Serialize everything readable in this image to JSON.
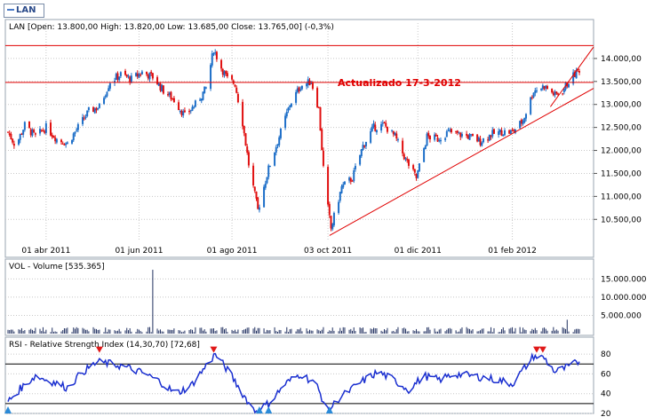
{
  "legend": {
    "symbol": "LAN",
    "color": "#4a7ac8"
  },
  "price_panel": {
    "header": "LAN [Open: 13.800,00  High: 13.820,00  Low: 13.685,00  Close: 13.765,00] (-0,3%)",
    "annotation": "Actualizado 17-3-2012",
    "y_ticks": [
      "14.000,00",
      "13.500,00",
      "13.000,00",
      "12.500,00",
      "12.000,00",
      "11.500,00",
      "11.000,00",
      "10.500,00"
    ],
    "x_ticks": [
      "01 abr 2011",
      "01 jun 2011",
      "01 ago 2011",
      "03 oct 2011",
      "01 dic 2011",
      "01 feb 2012"
    ],
    "support_line_1": 14280,
    "support_line_2": 13480
  },
  "volume_panel": {
    "header": "VOL - Volume [535.365]",
    "y_ticks": [
      "15.000.000",
      "10.000.000",
      "5.000.000"
    ]
  },
  "rsi_panel": {
    "header": "RSI - Relative Strength Index (14,30,70) [72,68]",
    "y_ticks": [
      "80",
      "60",
      "40",
      "20"
    ],
    "upper_level": 70,
    "lower_level": 30
  },
  "colors": {
    "up": "#1e6fc8",
    "down": "#e01010",
    "rsi": "#1a2fd0",
    "trend": "#e00000",
    "grid": "#c8c8c8"
  },
  "chart_data": [
    {
      "type": "candlestick",
      "title": "LAN",
      "ohlc_last": {
        "open": 13800.0,
        "high": 13820.0,
        "low": 13685.0,
        "close": 13765.0,
        "change_pct": -0.3
      },
      "x_range": [
        "2011-03-07",
        "2012-03-16"
      ],
      "ylim": [
        10100,
        14500
      ],
      "close_path": [
        [
          "2011-03-07",
          12400
        ],
        [
          "2011-03-12",
          12100
        ],
        [
          "2011-03-18",
          12550
        ],
        [
          "2011-03-25",
          12300
        ],
        [
          "2011-04-01",
          12500
        ],
        [
          "2011-04-08",
          12250
        ],
        [
          "2011-04-15",
          12150
        ],
        [
          "2011-04-22",
          12500
        ],
        [
          "2011-04-29",
          12850
        ],
        [
          "2011-05-06",
          12950
        ],
        [
          "2011-05-13",
          13500
        ],
        [
          "2011-05-20",
          13650
        ],
        [
          "2011-05-27",
          13550
        ],
        [
          "2011-06-03",
          13700
        ],
        [
          "2011-06-10",
          13600
        ],
        [
          "2011-06-17",
          13300
        ],
        [
          "2011-06-24",
          13100
        ],
        [
          "2011-07-01",
          12750
        ],
        [
          "2011-07-08",
          13000
        ],
        [
          "2011-07-15",
          13350
        ],
        [
          "2011-07-20",
          14200
        ],
        [
          "2011-07-25",
          13800
        ],
        [
          "2011-07-29",
          13550
        ],
        [
          "2011-08-03",
          13450
        ],
        [
          "2011-08-08",
          12600
        ],
        [
          "2011-08-12",
          11700
        ],
        [
          "2011-08-18",
          10700
        ],
        [
          "2011-08-25",
          11600
        ],
        [
          "2011-09-01",
          12300
        ],
        [
          "2011-09-08",
          13000
        ],
        [
          "2011-09-15",
          13400
        ],
        [
          "2011-09-22",
          13500
        ],
        [
          "2011-09-27",
          12900
        ],
        [
          "2011-10-01",
          11200
        ],
        [
          "2011-10-05",
          10300
        ],
        [
          "2011-10-12",
          11200
        ],
        [
          "2011-10-19",
          11400
        ],
        [
          "2011-10-26",
          12100
        ],
        [
          "2011-11-02",
          12500
        ],
        [
          "2011-11-09",
          12550
        ],
        [
          "2011-11-16",
          12300
        ],
        [
          "2011-11-23",
          11800
        ],
        [
          "2011-11-30",
          11400
        ],
        [
          "2011-12-07",
          12300
        ],
        [
          "2011-12-14",
          12250
        ],
        [
          "2011-12-21",
          12400
        ],
        [
          "2011-12-28",
          12350
        ],
        [
          "2012-01-04",
          12300
        ],
        [
          "2012-01-11",
          12200
        ],
        [
          "2012-01-18",
          12350
        ],
        [
          "2012-01-25",
          12400
        ],
        [
          "2012-02-01",
          12400
        ],
        [
          "2012-02-08",
          12650
        ],
        [
          "2012-02-15",
          13300
        ],
        [
          "2012-02-22",
          13400
        ],
        [
          "2012-02-29",
          13200
        ],
        [
          "2012-03-05",
          13300
        ],
        [
          "2012-03-10",
          13550
        ],
        [
          "2012-03-16",
          13765
        ]
      ]
    },
    {
      "type": "bar",
      "title": "VOL - Volume",
      "last_value": 535365,
      "ylim": [
        0,
        18000000
      ],
      "peaks": [
        [
          "2011-06-10",
          17500000
        ],
        [
          "2012-03-08",
          3800000
        ]
      ],
      "typical_value": 1000000
    },
    {
      "type": "line",
      "title": "RSI - Relative Strength Index",
      "params": [
        14,
        30,
        70
      ],
      "last_value": 72.68,
      "ylim": [
        20,
        90
      ],
      "levels": [
        70,
        30
      ],
      "series": [
        [
          "2011-03-07",
          32
        ],
        [
          "2011-03-15",
          45
        ],
        [
          "2011-03-25",
          58
        ],
        [
          "2011-04-05",
          52
        ],
        [
          "2011-04-15",
          46
        ],
        [
          "2011-04-25",
          62
        ],
        [
          "2011-05-05",
          72
        ],
        [
          "2011-05-15",
          70
        ],
        [
          "2011-05-25",
          66
        ],
        [
          "2011-06-05",
          60
        ],
        [
          "2011-06-15",
          52
        ],
        [
          "2011-06-25",
          40
        ],
        [
          "2011-07-05",
          48
        ],
        [
          "2011-07-15",
          68
        ],
        [
          "2011-07-21",
          80
        ],
        [
          "2011-07-30",
          62
        ],
        [
          "2011-08-08",
          40
        ],
        [
          "2011-08-16",
          22
        ],
        [
          "2011-08-25",
          30
        ],
        [
          "2011-09-05",
          50
        ],
        [
          "2011-09-15",
          60
        ],
        [
          "2011-09-25",
          50
        ],
        [
          "2011-10-03",
          22
        ],
        [
          "2011-10-10",
          35
        ],
        [
          "2011-10-25",
          52
        ],
        [
          "2011-11-05",
          62
        ],
        [
          "2011-11-15",
          54
        ],
        [
          "2011-11-25",
          44
        ],
        [
          "2011-12-05",
          58
        ],
        [
          "2011-12-15",
          54
        ],
        [
          "2011-12-25",
          60
        ],
        [
          "2012-01-05",
          58
        ],
        [
          "2012-01-15",
          56
        ],
        [
          "2012-01-25",
          53
        ],
        [
          "2012-02-01",
          50
        ],
        [
          "2012-02-08",
          64
        ],
        [
          "2012-02-15",
          78
        ],
        [
          "2012-02-22",
          76
        ],
        [
          "2012-02-29",
          62
        ],
        [
          "2012-03-07",
          66
        ],
        [
          "2012-03-16",
          72.68
        ]
      ],
      "markers_overbought": [
        "2011-05-06",
        "2011-07-20",
        "2012-02-17",
        "2012-02-21"
      ],
      "markers_oversold": [
        "2011-03-07",
        "2011-08-19",
        "2011-08-25",
        "2011-10-04"
      ]
    }
  ]
}
